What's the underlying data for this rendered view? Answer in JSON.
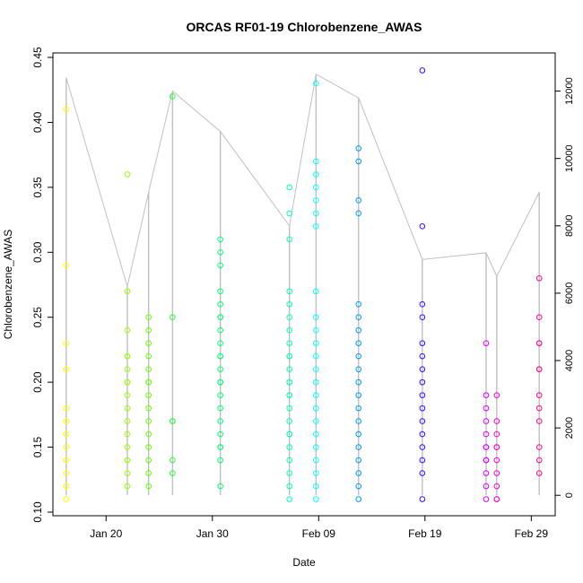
{
  "chart_data": {
    "type": "scatter",
    "title": "ORCAS RF01-19 Chlorobenzene_AWAS",
    "xlabel": "Date",
    "ylabel": "Chlorobenzene_AWAS",
    "ylim": [
      0.1,
      0.45
    ],
    "y_ticks": [
      0.1,
      0.15,
      0.2,
      0.25,
      0.3,
      0.35,
      0.4,
      0.45
    ],
    "y_tick_labels": [
      "0.10",
      "0.15",
      "0.20",
      "0.25",
      "0.30",
      "0.35",
      "0.40",
      "0.45"
    ],
    "x_ticks": [
      "2016-01-20",
      "2016-01-30",
      "2016-02-09",
      "2016-02-19",
      "2016-02-29"
    ],
    "x_tick_labels": [
      "Jan 20",
      "Jan 30",
      "Feb 09",
      "Feb 19",
      "Feb 29"
    ],
    "xlim": [
      "2016-01-15T00:00",
      "2016-03-02T06:00"
    ],
    "secondary_y": {
      "label": "",
      "ylim": [
        -500,
        13000
      ],
      "ticks": [
        0,
        2000,
        4000,
        6000,
        8000,
        10000,
        12000
      ],
      "tick_labels": [
        "0",
        "2000",
        "4000",
        "6000",
        "8000",
        "10000",
        "12000"
      ],
      "altitude_trace_color": "#c0c0c0"
    },
    "grid": false,
    "legend": "none",
    "flights": [
      {
        "date": "2016-01-16T06:00",
        "color": "#ffff00",
        "values": [
          0.41,
          0.29,
          0.23,
          0.21,
          0.21,
          0.18,
          0.17,
          0.17,
          0.16,
          0.16,
          0.15,
          0.14,
          0.14,
          0.13,
          0.12,
          0.12,
          0.11
        ],
        "alt_top": 12400
      },
      {
        "date": "2016-01-22T00:00",
        "color": "#99ff00",
        "values": [
          0.36,
          0.27,
          0.24,
          0.22,
          0.22,
          0.21,
          0.2,
          0.2,
          0.19,
          0.18,
          0.17,
          0.16,
          0.15,
          0.14,
          0.14,
          0.13,
          0.12
        ],
        "alt_top": 6200
      },
      {
        "date": "2016-01-24T00:00",
        "color": "#66ff00",
        "values": [
          0.25,
          0.24,
          0.23,
          0.22,
          0.21,
          0.2,
          0.2,
          0.19,
          0.18,
          0.17,
          0.16,
          0.15,
          0.14,
          0.13,
          0.12
        ],
        "alt_top": 9000
      },
      {
        "date": "2016-01-26T06:00",
        "color": "#22ff33",
        "values": [
          0.42,
          0.25,
          0.17,
          0.17,
          0.14,
          0.13
        ],
        "alt_top": 12000
      },
      {
        "date": "2016-01-30T18:00",
        "color": "#00ff77",
        "values": [
          0.31,
          0.3,
          0.29,
          0.27,
          0.26,
          0.25,
          0.25,
          0.24,
          0.23,
          0.22,
          0.22,
          0.21,
          0.2,
          0.2,
          0.19,
          0.18,
          0.17,
          0.16,
          0.15,
          0.15,
          0.14,
          0.12
        ],
        "alt_top": 10800
      },
      {
        "date": "2016-02-06T06:00",
        "color": "#00ffbb",
        "values": [
          0.35,
          0.33,
          0.31,
          0.27,
          0.26,
          0.25,
          0.24,
          0.23,
          0.22,
          0.22,
          0.21,
          0.2,
          0.2,
          0.19,
          0.19,
          0.18,
          0.17,
          0.16,
          0.16,
          0.15,
          0.14,
          0.13,
          0.12,
          0.11
        ],
        "alt_top": 8000
      },
      {
        "date": "2016-02-08T18:00",
        "color": "#00ffff",
        "values": [
          0.43,
          0.37,
          0.36,
          0.35,
          0.34,
          0.33,
          0.32,
          0.27,
          0.25,
          0.24,
          0.23,
          0.22,
          0.21,
          0.2,
          0.19,
          0.18,
          0.17,
          0.16,
          0.15,
          0.14,
          0.13,
          0.12,
          0.11
        ],
        "alt_top": 12500
      },
      {
        "date": "2016-02-12T18:00",
        "color": "#0099ff",
        "values": [
          0.38,
          0.37,
          0.34,
          0.33,
          0.26,
          0.25,
          0.24,
          0.23,
          0.22,
          0.21,
          0.2,
          0.19,
          0.18,
          0.17,
          0.16,
          0.15,
          0.14,
          0.13,
          0.12,
          0.11
        ],
        "alt_top": 11800
      },
      {
        "date": "2016-02-18T18:00",
        "color": "#3311ff",
        "values": [
          0.44,
          0.32,
          0.26,
          0.25,
          0.23,
          0.22,
          0.21,
          0.2,
          0.19,
          0.18,
          0.17,
          0.16,
          0.15,
          0.14,
          0.13,
          0.11
        ],
        "alt_top": 7000
      },
      {
        "date": "2016-02-24T18:00",
        "color": "#dd00ff",
        "values": [
          0.23,
          0.19,
          0.18,
          0.17,
          0.16,
          0.15,
          0.15,
          0.14,
          0.14,
          0.13,
          0.12,
          0.11
        ],
        "alt_top": 7200
      },
      {
        "date": "2016-02-25T18:00",
        "color": "#ff00cc",
        "values": [
          0.19,
          0.17,
          0.16,
          0.15,
          0.15,
          0.14,
          0.13,
          0.12,
          0.11,
          0.11
        ],
        "alt_top": 6500
      },
      {
        "date": "2016-02-29T18:00",
        "color": "#ee1188",
        "values": [
          0.28,
          0.25,
          0.23,
          0.23,
          0.21,
          0.21,
          0.19,
          0.18,
          0.17,
          0.15,
          0.14,
          0.13
        ],
        "alt_top": 9000
      }
    ]
  }
}
